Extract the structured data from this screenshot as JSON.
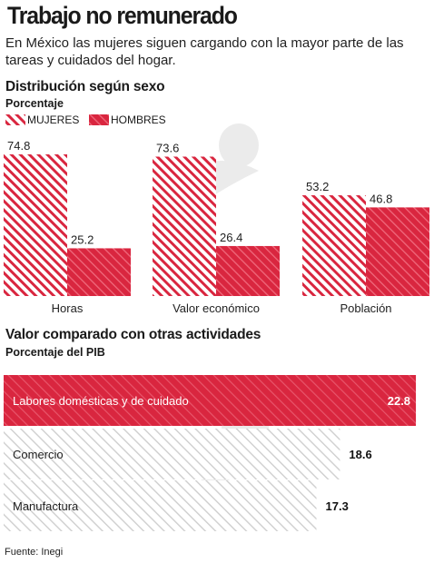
{
  "title": "Trabajo no remunerado",
  "subtitle": "En México las mujeres siguen cargando con la mayor parte de las tareas y cuidados del hogar.",
  "colors": {
    "accent": "#d9263f",
    "hatch_gray": "#cccccc",
    "text": "#1a1a1a"
  },
  "section1": {
    "title": "Distribución según sexo",
    "unit": "Porcentaje"
  },
  "section2": {
    "title": "Valor comparado con otras actividades",
    "unit": "Porcentaje del PIB"
  },
  "source": "Fuente: Inegi",
  "chart_data": [
    {
      "type": "bar",
      "title": "Distribución según sexo",
      "ylabel": "Porcentaje",
      "categories": [
        "Horas",
        "Valor económico",
        "Población"
      ],
      "series": [
        {
          "name": "MUJERES",
          "values": [
            74.8,
            73.6,
            53.2
          ],
          "value_labels": [
            "74.8",
            "73.6",
            "53.2"
          ],
          "style": "hatched",
          "color": "#d9263f"
        },
        {
          "name": "HOMBRES",
          "values": [
            25.2,
            26.4,
            46.8
          ],
          "value_labels": [
            "25.2",
            "26.4",
            "46.8"
          ],
          "style": "solid-hatched",
          "color": "#d9263f"
        }
      ],
      "ylim": [
        0,
        80
      ],
      "legend": "top-left",
      "grid": false
    },
    {
      "type": "bar",
      "orientation": "horizontal",
      "title": "Valor comparado con otras actividades",
      "xlabel": "Porcentaje del PIB",
      "categories": [
        "Labores domésticas y de cuidado",
        "Comercio",
        "Manufactura"
      ],
      "values": [
        22.8,
        18.6,
        17.3
      ],
      "value_labels": [
        "22.8",
        "18.6",
        "17.3"
      ],
      "highlight": "Labores domésticas y de cuidado",
      "xlim": [
        0,
        23.5
      ],
      "grid": false
    }
  ]
}
